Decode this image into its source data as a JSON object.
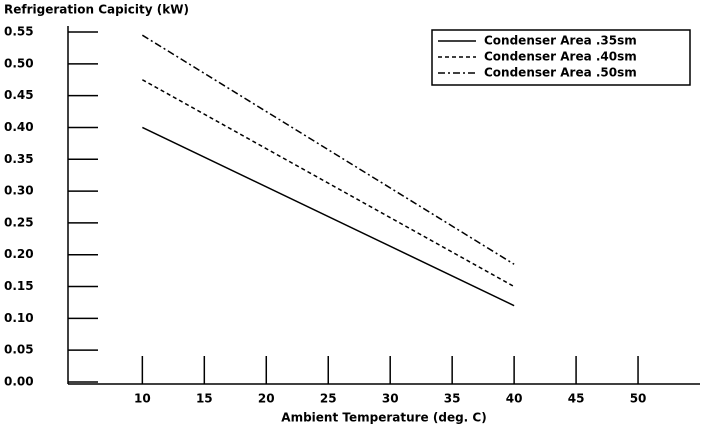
{
  "chart_data": {
    "type": "line",
    "y_axis_label": "Refrigeration Capicity (kW)",
    "x_axis_label": "Ambient Temperature (deg. C)",
    "x": [
      10,
      40
    ],
    "series": [
      {
        "name": "Condenser Area .35sm",
        "color": "#000000",
        "dash": "solid",
        "values": [
          0.4,
          0.12
        ]
      },
      {
        "name": "Condenser Area .40sm",
        "color": "#000000",
        "dash": "dashed",
        "values": [
          0.475,
          0.15
        ]
      },
      {
        "name": "Condenser Area .50sm",
        "color": "#000000",
        "dash": "dashdot",
        "values": [
          0.545,
          0.185
        ]
      }
    ],
    "xlim": [
      4,
      55
    ],
    "xticks": [
      10,
      15,
      20,
      25,
      30,
      35,
      40,
      45,
      50
    ],
    "ylim": [
      0,
      0.55
    ],
    "yticks": [
      {
        "value": 0,
        "label": "0.00"
      },
      0.05,
      {
        "value": 0.1,
        "label": "0.10"
      },
      0.15,
      {
        "value": 0.2,
        "label": "0.20"
      },
      0.25,
      {
        "value": 0.3,
        "label": "0.30"
      },
      0.35,
      {
        "value": 0.4,
        "label": "0.40"
      },
      0.45,
      {
        "value": 0.5,
        "label": "0.50"
      },
      0.55
    ],
    "grid": false,
    "legend": "top-right"
  }
}
